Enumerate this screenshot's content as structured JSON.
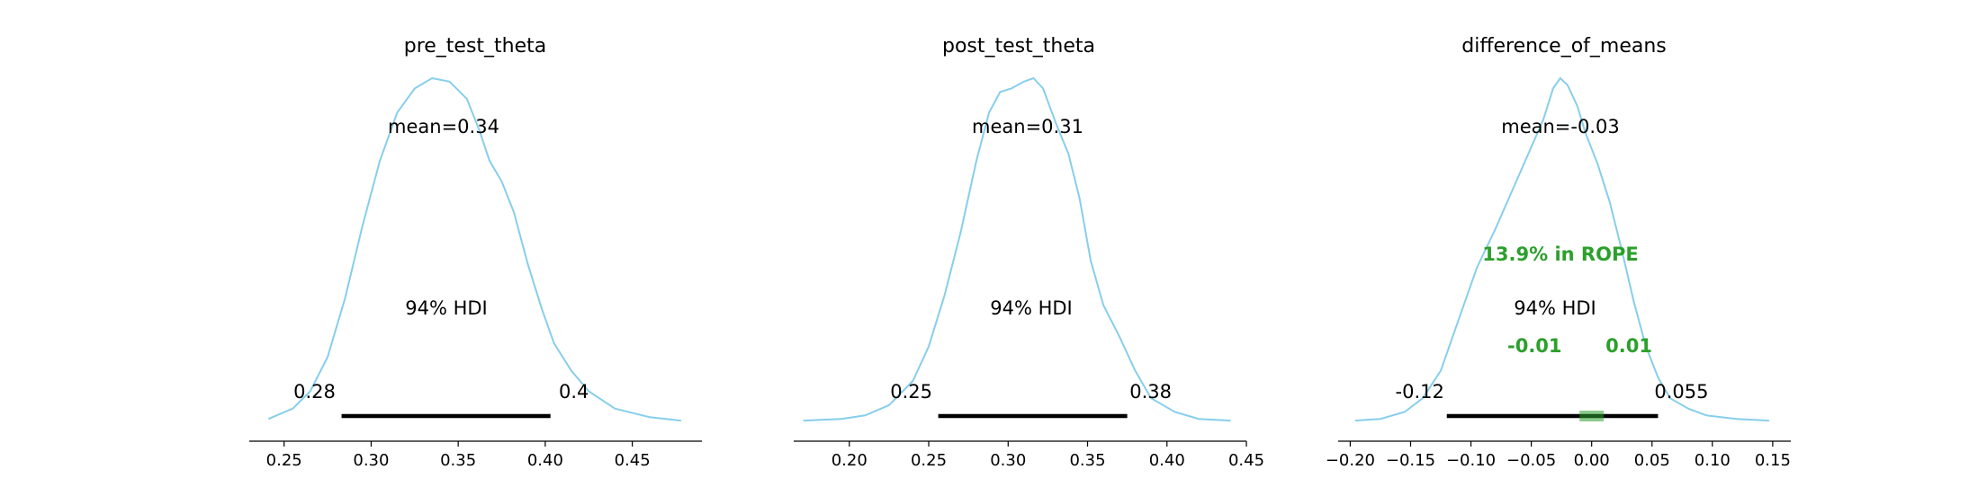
{
  "chart_data": [
    {
      "type": "density",
      "title": "pre_test_theta",
      "mean_label": "mean=0.34",
      "hdi_label": "94% HDI",
      "hdi": [
        0.283,
        0.403
      ],
      "hdi_labels": [
        "0.28",
        "0.4"
      ],
      "xlim": [
        0.23,
        0.49
      ],
      "xticks": [
        0.25,
        0.3,
        0.35,
        0.4,
        0.45
      ],
      "xtick_labels": [
        "0.25",
        "0.30",
        "0.35",
        "0.40",
        "0.45"
      ],
      "ymax": 1.0,
      "curve": [
        [
          0.241,
          0.01
        ],
        [
          0.255,
          0.04
        ],
        [
          0.265,
          0.09
        ],
        [
          0.275,
          0.19
        ],
        [
          0.285,
          0.36
        ],
        [
          0.295,
          0.57
        ],
        [
          0.305,
          0.76
        ],
        [
          0.315,
          0.9
        ],
        [
          0.325,
          0.97
        ],
        [
          0.335,
          1.0
        ],
        [
          0.345,
          0.99
        ],
        [
          0.355,
          0.94
        ],
        [
          0.362,
          0.85
        ],
        [
          0.368,
          0.76
        ],
        [
          0.375,
          0.7
        ],
        [
          0.382,
          0.61
        ],
        [
          0.39,
          0.46
        ],
        [
          0.398,
          0.33
        ],
        [
          0.405,
          0.23
        ],
        [
          0.415,
          0.15
        ],
        [
          0.425,
          0.09
        ],
        [
          0.44,
          0.04
        ],
        [
          0.46,
          0.015
        ],
        [
          0.478,
          0.005
        ]
      ]
    },
    {
      "type": "density",
      "title": "post_test_theta",
      "mean_label": "mean=0.31",
      "hdi_label": "94% HDI",
      "hdi": [
        0.256,
        0.375
      ],
      "hdi_labels": [
        "0.25",
        "0.38"
      ],
      "xlim": [
        0.165,
        0.45
      ],
      "xticks": [
        0.2,
        0.25,
        0.3,
        0.35,
        0.4,
        0.45
      ],
      "xtick_labels": [
        "0.20",
        "0.25",
        "0.30",
        "0.35",
        "0.40",
        "0.45"
      ],
      "ymax": 1.0,
      "curve": [
        [
          0.171,
          0.005
        ],
        [
          0.195,
          0.01
        ],
        [
          0.21,
          0.02
        ],
        [
          0.225,
          0.05
        ],
        [
          0.24,
          0.12
        ],
        [
          0.25,
          0.22
        ],
        [
          0.26,
          0.37
        ],
        [
          0.27,
          0.55
        ],
        [
          0.28,
          0.76
        ],
        [
          0.288,
          0.9
        ],
        [
          0.295,
          0.96
        ],
        [
          0.302,
          0.97
        ],
        [
          0.31,
          0.99
        ],
        [
          0.316,
          1.0
        ],
        [
          0.322,
          0.97
        ],
        [
          0.33,
          0.87
        ],
        [
          0.338,
          0.78
        ],
        [
          0.345,
          0.65
        ],
        [
          0.352,
          0.47
        ],
        [
          0.36,
          0.34
        ],
        [
          0.37,
          0.25
        ],
        [
          0.38,
          0.15
        ],
        [
          0.39,
          0.07
        ],
        [
          0.405,
          0.03
        ],
        [
          0.42,
          0.01
        ],
        [
          0.44,
          0.005
        ]
      ]
    },
    {
      "type": "density",
      "title": "difference_of_means",
      "mean_label": "mean=-0.03",
      "hdi_label": "94% HDI",
      "hdi": [
        -0.12,
        0.055
      ],
      "hdi_labels": [
        "-0.12",
        "0.055"
      ],
      "rope": [
        -0.01,
        0.01
      ],
      "rope_labels": [
        "-0.01",
        "0.01"
      ],
      "rope_text": "13.9% in ROPE",
      "xlim": [
        -0.21,
        0.165
      ],
      "xticks": [
        -0.2,
        -0.15,
        -0.1,
        -0.05,
        0.0,
        0.05,
        0.1,
        0.15
      ],
      "xtick_labels": [
        "−0.20",
        "−0.15",
        "−0.10",
        "−0.05",
        "0.00",
        "0.05",
        "0.10",
        "0.15"
      ],
      "ymax": 1.0,
      "curve": [
        [
          -0.196,
          0.005
        ],
        [
          -0.175,
          0.01
        ],
        [
          -0.155,
          0.03
        ],
        [
          -0.14,
          0.07
        ],
        [
          -0.125,
          0.15
        ],
        [
          -0.11,
          0.3
        ],
        [
          -0.095,
          0.45
        ],
        [
          -0.08,
          0.56
        ],
        [
          -0.065,
          0.68
        ],
        [
          -0.05,
          0.8
        ],
        [
          -0.04,
          0.88
        ],
        [
          -0.032,
          0.97
        ],
        [
          -0.026,
          1.0
        ],
        [
          -0.02,
          0.98
        ],
        [
          -0.012,
          0.92
        ],
        [
          -0.005,
          0.84
        ],
        [
          0.005,
          0.75
        ],
        [
          0.015,
          0.64
        ],
        [
          0.025,
          0.5
        ],
        [
          0.035,
          0.35
        ],
        [
          0.045,
          0.22
        ],
        [
          0.055,
          0.13
        ],
        [
          0.065,
          0.07
        ],
        [
          0.08,
          0.04
        ],
        [
          0.095,
          0.02
        ],
        [
          0.12,
          0.01
        ],
        [
          0.147,
          0.005
        ]
      ]
    }
  ]
}
